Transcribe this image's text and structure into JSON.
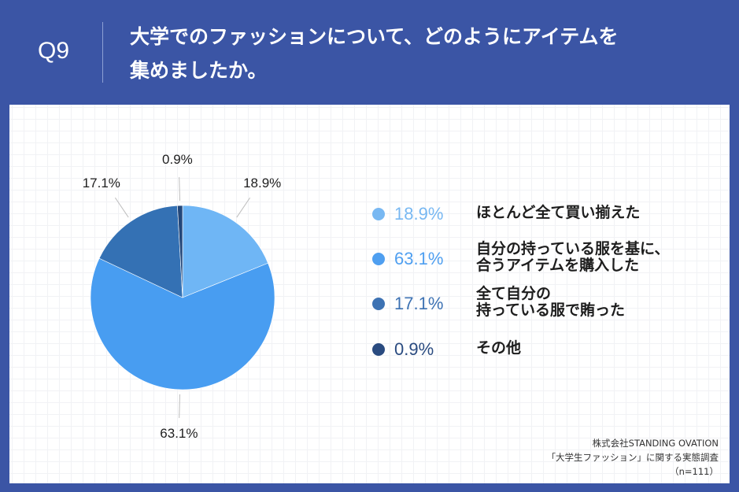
{
  "header": {
    "question_number": "Q9",
    "title_line1": "大学でのファッションについて、どのようにアイテムを",
    "title_line2": "集めましたか。",
    "background_color": "#3b55a5"
  },
  "chart_data": {
    "type": "pie",
    "title": "大学でのファッションについて、どのようにアイテムを集めましたか。",
    "categories": [
      "ほとんど全て買い揃えた",
      "自分の持っている服を基に、合うアイテムを購入した",
      "全て自分の持っている服で賄った",
      "その他"
    ],
    "values": [
      18.9,
      63.1,
      17.1,
      0.9
    ],
    "unit": "%",
    "colors": [
      "#6fb6f5",
      "#489df1",
      "#3471b4",
      "#23477a"
    ],
    "start_angle": "12 o'clock, clockwise",
    "legend_position": "right",
    "n": 111
  },
  "pie_labels": [
    {
      "text": "18.9%"
    },
    {
      "text": "63.1%"
    },
    {
      "text": "17.1%"
    },
    {
      "text": "0.9%"
    }
  ],
  "legend": [
    {
      "pct": "18.9%",
      "label": "ほとんど全て買い揃えた",
      "color": "#78b8f2"
    },
    {
      "pct": "63.1%",
      "label": "自分の持っている服を基に、\n合うアイテムを購入した",
      "color": "#4f9ff0"
    },
    {
      "pct": "17.1%",
      "label": "全て自分の\n持っている服で賄った",
      "color": "#3d72b3"
    },
    {
      "pct": "0.9%",
      "label": "その他",
      "color": "#2a4b80"
    }
  ],
  "source": {
    "company": "株式会社STANDING OVATION",
    "survey": "「大学生ファッション」に関する実態調査",
    "sample": "（n=111）"
  }
}
